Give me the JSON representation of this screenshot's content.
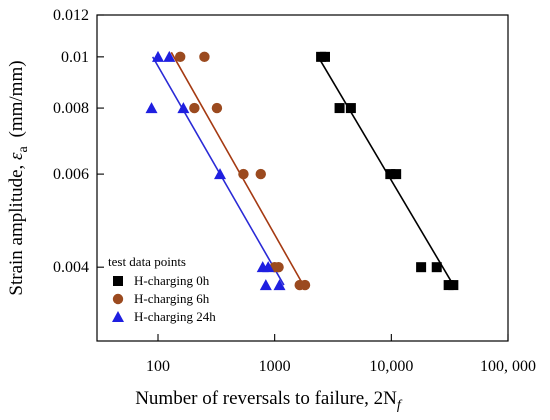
{
  "chart_data": {
    "type": "scatter",
    "title": "",
    "xlabel": "Number of reversals to failure,",
    "xlabel_math": "2N",
    "xlabel_math_sub": "f",
    "ylabel": "Strain amplitude,",
    "ylabel_symbol": "ε",
    "ylabel_symbol_sub": "a",
    "ylabel_unit": "(mm/mm)",
    "x_scale": "log",
    "y_scale": "log",
    "xlim": [
      30,
      100000
    ],
    "ylim": [
      0.0029,
      0.012
    ],
    "x_ticks": [
      {
        "value": 100,
        "label": "100"
      },
      {
        "value": 1000,
        "label": "1000"
      },
      {
        "value": 10000,
        "label": "10,000"
      },
      {
        "value": 100000,
        "label": "100, 000"
      }
    ],
    "y_ticks": [
      {
        "value": 0.004,
        "label": "0.004"
      },
      {
        "value": 0.006,
        "label": "0.006"
      },
      {
        "value": 0.008,
        "label": "0.008"
      },
      {
        "value": 0.01,
        "label": "0.01"
      },
      {
        "value": 0.012,
        "label": "0.012"
      }
    ],
    "grid": false,
    "legend": {
      "title": "test data points",
      "placement": "bottom-left"
    },
    "series": [
      {
        "name": "H-charging 0h",
        "marker": "square",
        "color": "#000000",
        "points": [
          [
            2500,
            0.01
          ],
          [
            2700,
            0.01
          ],
          [
            3600,
            0.008
          ],
          [
            4500,
            0.008
          ],
          [
            9800,
            0.006
          ],
          [
            11000,
            0.006
          ],
          [
            18000,
            0.004
          ],
          [
            24500,
            0.004
          ],
          [
            31000,
            0.0037
          ],
          [
            34000,
            0.0037
          ]
        ],
        "fit": [
          [
            2300,
            0.0101
          ],
          [
            34000,
            0.0037
          ]
        ]
      },
      {
        "name": "H-charging 6h",
        "marker": "circle",
        "color": "#9b4a1f",
        "line_color": "#a53a12",
        "points": [
          [
            155,
            0.01
          ],
          [
            250,
            0.01
          ],
          [
            205,
            0.008
          ],
          [
            320,
            0.008
          ],
          [
            540,
            0.006
          ],
          [
            760,
            0.006
          ],
          [
            1000,
            0.004
          ],
          [
            1080,
            0.004
          ],
          [
            1640,
            0.0037
          ],
          [
            1820,
            0.0037
          ]
        ],
        "fit": [
          [
            130,
            0.0102
          ],
          [
            1700,
            0.00375
          ]
        ]
      },
      {
        "name": "H-charging 24h",
        "marker": "triangle",
        "color": "#1f1fe0",
        "line_color": "#2a2ad6",
        "points": [
          [
            100,
            0.01
          ],
          [
            125,
            0.01
          ],
          [
            88,
            0.008
          ],
          [
            165,
            0.008
          ],
          [
            340,
            0.006
          ],
          [
            790,
            0.004
          ],
          [
            880,
            0.004
          ],
          [
            840,
            0.0037
          ],
          [
            1100,
            0.0037
          ]
        ],
        "fit": [
          [
            90,
            0.01
          ],
          [
            1200,
            0.0037
          ]
        ]
      }
    ]
  }
}
